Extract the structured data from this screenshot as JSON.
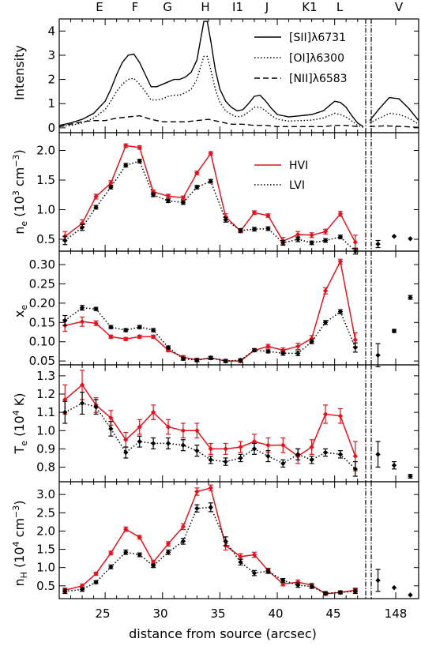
{
  "figure": {
    "top_labels": [
      "E",
      "F",
      "G",
      "H",
      "I1",
      "J",
      "K1",
      "L",
      "V"
    ],
    "xlabel": "distance from source (arcsec)",
    "x_ticks": [
      25,
      30,
      35,
      40,
      45
    ],
    "x_break_tick": "148",
    "colors": {
      "hvi": "#e0141e",
      "lvi": "#000000",
      "axes": "#000000"
    }
  },
  "chart_data": [
    {
      "type": "line",
      "panel": "intensity",
      "ylabel": "Intensity",
      "ylim": [
        -0.2,
        4.5
      ],
      "yticks": [
        0,
        1,
        2,
        3,
        4
      ],
      "legend_position": "top-right",
      "series": [
        {
          "name": "[SII]λ6731",
          "style": "solid",
          "x": [
            21,
            22,
            23,
            24,
            25,
            25.5,
            26,
            26.5,
            27,
            27.5,
            28,
            28.5,
            29,
            29.5,
            30,
            30.5,
            31,
            31.5,
            32,
            32.5,
            33,
            33.3,
            33.6,
            33.9,
            34.2,
            34.6,
            35,
            35.5,
            36,
            36.5,
            37,
            37.5,
            38,
            38.5,
            39,
            39.5,
            40,
            41,
            42,
            43,
            44,
            44.5,
            45,
            45.5,
            46,
            46.5,
            47,
            47.5
          ],
          "y": [
            0.1,
            0.2,
            0.35,
            0.6,
            1.1,
            1.6,
            2.2,
            2.7,
            3.0,
            3.05,
            2.7,
            2.2,
            1.7,
            1.7,
            1.8,
            1.9,
            2.0,
            2.0,
            2.1,
            2.3,
            2.8,
            3.6,
            4.4,
            4.4,
            3.6,
            2.4,
            1.6,
            1.1,
            0.85,
            0.7,
            0.75,
            1.0,
            1.3,
            1.35,
            1.1,
            0.8,
            0.55,
            0.45,
            0.5,
            0.55,
            0.7,
            0.9,
            1.1,
            1.05,
            0.85,
            0.5,
            0.2,
            0.05
          ]
        },
        {
          "name": "[OI]λ6300",
          "style": "dotted",
          "x": [
            21,
            22,
            23,
            24,
            25,
            25.5,
            26,
            26.5,
            27,
            27.5,
            28,
            28.5,
            29,
            29.5,
            30,
            30.5,
            31,
            31.5,
            32,
            32.5,
            33,
            33.3,
            33.6,
            33.9,
            34.2,
            34.6,
            35,
            35.5,
            36,
            36.5,
            37,
            37.5,
            38,
            38.5,
            39,
            39.5,
            40,
            41,
            42,
            43,
            44,
            44.5,
            45,
            45.5,
            46,
            46.5,
            47,
            47.5
          ],
          "y": [
            0.05,
            0.1,
            0.2,
            0.4,
            0.75,
            1.1,
            1.5,
            1.8,
            2.0,
            2.05,
            1.8,
            1.5,
            1.15,
            1.15,
            1.2,
            1.3,
            1.35,
            1.35,
            1.45,
            1.6,
            2.0,
            2.5,
            2.95,
            2.95,
            2.4,
            1.6,
            1.05,
            0.7,
            0.55,
            0.45,
            0.5,
            0.65,
            0.85,
            0.85,
            0.7,
            0.5,
            0.35,
            0.28,
            0.3,
            0.32,
            0.4,
            0.5,
            0.6,
            0.55,
            0.45,
            0.28,
            0.1,
            0.02
          ]
        },
        {
          "name": "[NII]λ6583",
          "style": "dashed",
          "x": [
            21,
            22,
            23,
            24,
            25,
            26,
            27,
            28,
            29,
            30,
            31,
            32,
            33,
            34,
            35,
            36,
            37,
            38,
            39,
            40,
            41,
            42,
            43,
            44,
            45,
            46,
            47
          ],
          "y": [
            0.05,
            0.15,
            0.25,
            0.3,
            0.3,
            0.4,
            0.45,
            0.5,
            0.35,
            0.25,
            0.25,
            0.25,
            0.3,
            0.35,
            0.25,
            0.15,
            0.15,
            0.1,
            0.1,
            0.05,
            0.05,
            0.05,
            0.05,
            0.05,
            0.1,
            0.1,
            0.05
          ]
        }
      ],
      "break_series": [
        {
          "style": "solid",
          "x": [
            0,
            0.2,
            0.4,
            0.6,
            0.8,
            1.0
          ],
          "y": [
            0.3,
            0.8,
            1.25,
            1.2,
            0.8,
            0.3
          ]
        },
        {
          "style": "dotted",
          "x": [
            0,
            0.2,
            0.4,
            0.6,
            0.8,
            1.0
          ],
          "y": [
            0.2,
            0.4,
            0.6,
            0.55,
            0.4,
            0.15
          ]
        },
        {
          "style": "dashed",
          "x": [
            0,
            0.3,
            0.6,
            1.0
          ],
          "y": [
            0.05,
            0.08,
            0.06,
            0.02
          ]
        }
      ]
    },
    {
      "type": "line",
      "panel": "ne",
      "ylabel": "n_e (10^3 cm^-3)",
      "ylim": [
        0.3,
        2.3
      ],
      "yticks": [
        0.5,
        1.0,
        1.5,
        2.0
      ],
      "legend_position": "top-right",
      "x": [
        21.5,
        23,
        24.2,
        25.5,
        26.8,
        28,
        29.2,
        30.5,
        31.8,
        33,
        34.2,
        35.5,
        36.8,
        38,
        39.2,
        40.5,
        41.8,
        43,
        44.2,
        45.5,
        46.8
      ],
      "series": [
        {
          "name": "HVI",
          "style": "solid",
          "color": "#e0141e",
          "y": [
            0.55,
            0.77,
            1.22,
            1.45,
            2.08,
            2.05,
            1.3,
            1.23,
            1.2,
            1.62,
            1.95,
            0.88,
            0.64,
            0.95,
            0.9,
            0.47,
            0.58,
            0.57,
            0.63,
            0.93,
            0.45
          ],
          "err": [
            0.08,
            0.06,
            0.04,
            0.04,
            0.03,
            0.03,
            0.03,
            0.03,
            0.03,
            0.03,
            0.03,
            0.05,
            0.03,
            0.03,
            0.03,
            0.06,
            0.05,
            0.04,
            0.04,
            0.04,
            0.12
          ]
        },
        {
          "name": "LVI",
          "style": "dotted",
          "color": "#000000",
          "y": [
            0.48,
            0.7,
            1.04,
            1.38,
            1.75,
            1.82,
            1.25,
            1.15,
            1.12,
            1.38,
            1.48,
            0.83,
            0.65,
            0.67,
            0.68,
            0.44,
            0.5,
            0.44,
            0.48,
            0.54,
            0.3
          ],
          "err": [
            0.07,
            0.05,
            0.03,
            0.03,
            0.03,
            0.03,
            0.03,
            0.03,
            0.03,
            0.03,
            0.03,
            0.04,
            0.03,
            0.03,
            0.03,
            0.04,
            0.04,
            0.03,
            0.03,
            0.03,
            0.05
          ]
        }
      ],
      "break_points": [
        {
          "x": 0.17,
          "y": 0.42,
          "err": 0.06
        },
        {
          "x": 0.5,
          "y": 0.55,
          "err": 0.0
        },
        {
          "x": 0.83,
          "y": 0.51,
          "err": 0.0
        }
      ]
    },
    {
      "type": "line",
      "panel": "xe",
      "ylabel": "x_e",
      "ylim": [
        0.04,
        0.335
      ],
      "yticks": [
        0.05,
        0.1,
        0.15,
        0.2,
        0.25,
        0.3
      ],
      "x": [
        21.5,
        23,
        24.2,
        25.5,
        26.8,
        28,
        29.2,
        30.5,
        31.8,
        33,
        34.2,
        35.5,
        36.8,
        38,
        39.2,
        40.5,
        41.8,
        43,
        44.2,
        45.5,
        46.8
      ],
      "series": [
        {
          "name": "HVI",
          "style": "solid",
          "color": "#e0141e",
          "y": [
            0.142,
            0.152,
            0.148,
            0.113,
            0.107,
            0.113,
            0.113,
            0.078,
            0.06,
            0.053,
            0.058,
            0.05,
            0.05,
            0.078,
            0.088,
            0.078,
            0.088,
            0.108,
            0.232,
            0.308,
            0.105
          ],
          "err": [
            0.015,
            0.012,
            0.006,
            0.004,
            0.004,
            0.004,
            0.004,
            0.004,
            0.004,
            0.004,
            0.004,
            0.004,
            0.004,
            0.004,
            0.005,
            0.006,
            0.008,
            0.008,
            0.008,
            0.006,
            0.018
          ]
        },
        {
          "name": "LVI",
          "style": "dotted",
          "color": "#000000",
          "y": [
            0.155,
            0.188,
            0.185,
            0.138,
            0.13,
            0.138,
            0.13,
            0.085,
            0.056,
            0.052,
            0.058,
            0.05,
            0.052,
            0.078,
            0.075,
            0.07,
            0.07,
            0.1,
            0.15,
            0.178,
            0.085
          ],
          "err": [
            0.013,
            0.006,
            0.004,
            0.004,
            0.004,
            0.004,
            0.004,
            0.004,
            0.004,
            0.004,
            0.004,
            0.004,
            0.004,
            0.004,
            0.004,
            0.005,
            0.006,
            0.005,
            0.005,
            0.005,
            0.012
          ]
        }
      ],
      "break_points": [
        {
          "x": 0.17,
          "y": 0.065,
          "err": 0.03
        },
        {
          "x": 0.5,
          "y": 0.128,
          "err": 0.004
        },
        {
          "x": 0.83,
          "y": 0.215,
          "err": 0.005
        }
      ]
    },
    {
      "type": "line",
      "panel": "te",
      "ylabel": "T_e (10^4 K)",
      "ylim": [
        0.72,
        1.36
      ],
      "yticks": [
        0.8,
        0.9,
        1.0,
        1.1,
        1.2,
        1.3
      ],
      "x": [
        21.5,
        23,
        24.2,
        25.5,
        26.8,
        28,
        29.2,
        30.5,
        31.8,
        33,
        34.2,
        35.5,
        36.8,
        38,
        39.2,
        40.5,
        41.8,
        43,
        44.2,
        45.5,
        46.8
      ],
      "series": [
        {
          "name": "HVI",
          "style": "solid",
          "color": "#e0141e",
          "y": [
            1.17,
            1.25,
            1.14,
            1.07,
            0.95,
            1.02,
            1.1,
            1.02,
            1.0,
            1.0,
            0.9,
            0.9,
            0.91,
            0.94,
            0.92,
            0.92,
            0.86,
            0.91,
            1.09,
            1.08,
            0.86
          ],
          "err": [
            0.08,
            0.08,
            0.04,
            0.04,
            0.04,
            0.04,
            0.04,
            0.04,
            0.04,
            0.04,
            0.03,
            0.03,
            0.03,
            0.04,
            0.04,
            0.04,
            0.04,
            0.04,
            0.05,
            0.04,
            0.08
          ]
        },
        {
          "name": "LVI",
          "style": "dotted",
          "color": "#000000",
          "y": [
            1.1,
            1.15,
            1.13,
            1.01,
            0.88,
            0.94,
            0.93,
            0.93,
            0.92,
            0.89,
            0.84,
            0.83,
            0.85,
            0.9,
            0.86,
            0.82,
            0.87,
            0.84,
            0.88,
            0.87,
            0.79
          ],
          "err": [
            0.06,
            0.06,
            0.04,
            0.04,
            0.03,
            0.03,
            0.03,
            0.03,
            0.03,
            0.03,
            0.02,
            0.02,
            0.02,
            0.03,
            0.03,
            0.02,
            0.03,
            0.02,
            0.02,
            0.02,
            0.04
          ]
        }
      ],
      "break_points": [
        {
          "x": 0.17,
          "y": 0.87,
          "err": 0.07
        },
        {
          "x": 0.5,
          "y": 0.81,
          "err": 0.02
        },
        {
          "x": 0.83,
          "y": 0.75,
          "err": 0.01
        }
      ]
    },
    {
      "type": "line",
      "panel": "nh",
      "ylabel": "n_H (10^4 cm^-3)",
      "ylim": [
        0.15,
        3.35
      ],
      "yticks": [
        0.5,
        1.0,
        1.5,
        2.0,
        2.5,
        3.0
      ],
      "x": [
        21.5,
        23,
        24.2,
        25.5,
        26.8,
        28,
        29.2,
        30.5,
        31.8,
        33,
        34.2,
        35.5,
        36.8,
        38,
        39.2,
        40.5,
        41.8,
        43,
        44.2,
        45.5,
        46.8
      ],
      "series": [
        {
          "name": "HVI",
          "style": "solid",
          "color": "#e0141e",
          "y": [
            0.38,
            0.5,
            0.83,
            1.4,
            2.05,
            1.83,
            1.15,
            1.65,
            2.12,
            3.08,
            3.18,
            1.6,
            1.3,
            1.35,
            0.92,
            0.55,
            0.6,
            0.52,
            0.28,
            0.32,
            0.38
          ],
          "err": [
            0.06,
            0.05,
            0.04,
            0.05,
            0.06,
            0.05,
            0.05,
            0.06,
            0.08,
            0.1,
            0.08,
            0.12,
            0.08,
            0.07,
            0.06,
            0.05,
            0.06,
            0.05,
            0.04,
            0.04,
            0.06
          ]
        },
        {
          "name": "LVI",
          "style": "dotted",
          "color": "#000000",
          "y": [
            0.35,
            0.4,
            0.6,
            1.02,
            1.42,
            1.35,
            1.05,
            1.42,
            1.72,
            2.62,
            2.65,
            1.72,
            1.15,
            0.85,
            0.9,
            0.65,
            0.52,
            0.48,
            0.3,
            0.32,
            0.35
          ],
          "err": [
            0.06,
            0.05,
            0.04,
            0.05,
            0.06,
            0.05,
            0.05,
            0.06,
            0.08,
            0.1,
            0.12,
            0.12,
            0.08,
            0.07,
            0.06,
            0.05,
            0.06,
            0.05,
            0.04,
            0.04,
            0.06
          ]
        }
      ],
      "break_points": [
        {
          "x": 0.17,
          "y": 0.65,
          "err": 0.3
        },
        {
          "x": 0.5,
          "y": 0.45,
          "err": 0.0
        },
        {
          "x": 0.83,
          "y": 0.25,
          "err": 0.0
        }
      ]
    }
  ]
}
